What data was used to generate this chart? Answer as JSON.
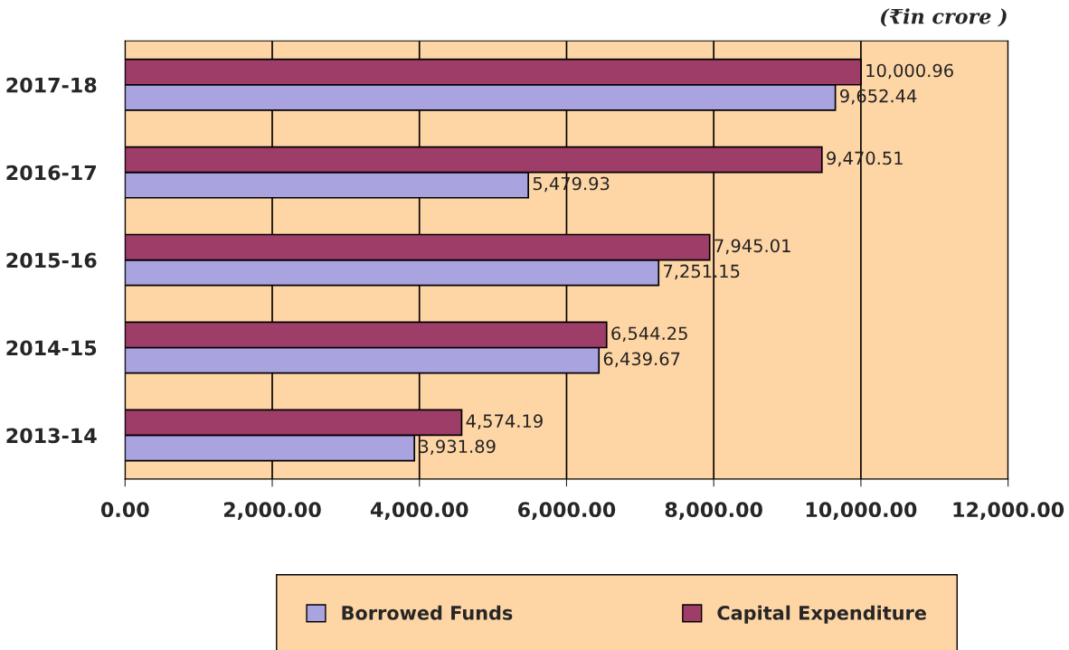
{
  "chart_data": {
    "type": "bar",
    "orientation": "horizontal",
    "categories": [
      "2017-18",
      "2016-17",
      "2015-16",
      "2014-15",
      "2013-14"
    ],
    "series": [
      {
        "name": "Borrowed Funds",
        "color": "#a9a4e0",
        "values": [
          9652.44,
          5479.93,
          7251.15,
          6439.67,
          3931.89
        ],
        "value_labels": [
          "9,652.44",
          "5,479.93",
          "7,251.15",
          "6,439.67",
          "3,931.89"
        ]
      },
      {
        "name": "Capital Expenditure",
        "color": "#9e3d68",
        "values": [
          10000.96,
          9470.51,
          7945.01,
          6544.25,
          4574.19
        ],
        "value_labels": [
          "10,000.96",
          "9,470.51",
          "7,945.01",
          "6,544.25",
          "4,574.19"
        ]
      }
    ],
    "xlim": [
      0,
      12000
    ],
    "xticks": [
      {
        "value": 0,
        "label": "0.00"
      },
      {
        "value": 2000,
        "label": "2,000.00"
      },
      {
        "value": 4000,
        "label": "4,000.00"
      },
      {
        "value": 6000,
        "label": "6,000.00"
      },
      {
        "value": 8000,
        "label": "8,000.00"
      },
      {
        "value": 10000,
        "label": "10,000.00"
      },
      {
        "value": 12000,
        "label": "12,000.00"
      }
    ],
    "grid": "x",
    "legend": "bottom",
    "annotations": [
      "(₹in crore )"
    ]
  }
}
